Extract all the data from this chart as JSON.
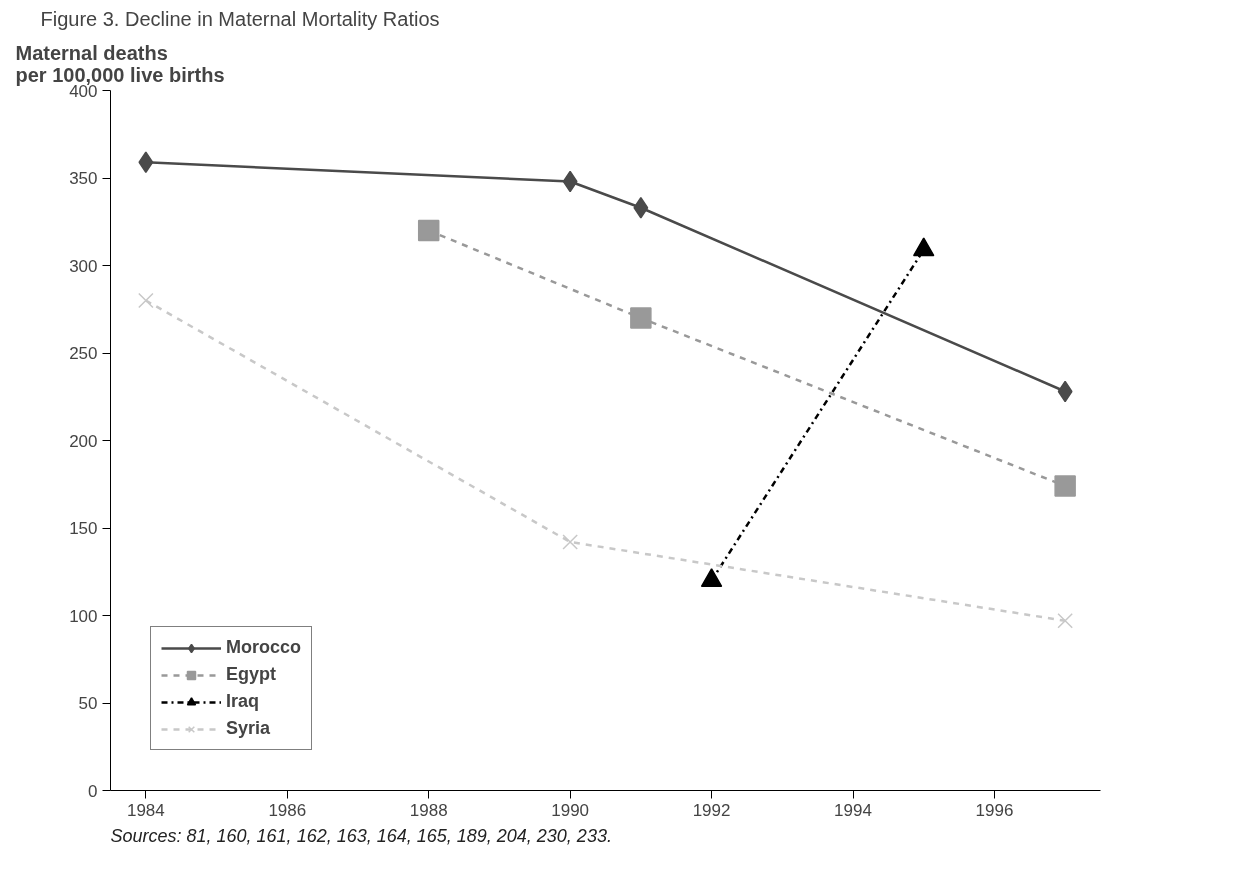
{
  "chart_data": {
    "type": "line",
    "title": "Figure 3. Decline in Maternal Mortality Ratios",
    "ylabel": "Maternal deaths\nper 100,000 live births",
    "xlim": [
      1983.5,
      1997.5
    ],
    "xticks": [
      1984,
      1986,
      1988,
      1990,
      1992,
      1994,
      1996
    ],
    "ylim": [
      0,
      400
    ],
    "yticks": [
      0,
      50,
      100,
      150,
      200,
      250,
      300,
      350,
      400
    ],
    "grid": false,
    "legend": "bottom left",
    "series": [
      {
        "name": "Morocco",
        "color": "#4a4a4a",
        "marker": "diamond",
        "line_style": "solid",
        "x": [
          1984,
          1990,
          1991,
          1997
        ],
        "values": [
          359,
          348,
          333,
          228
        ]
      },
      {
        "name": "Egypt",
        "color": "#999999",
        "marker": "square",
        "line_style": "dashed",
        "x": [
          1988,
          1991,
          1997
        ],
        "values": [
          320,
          270,
          174
        ]
      },
      {
        "name": "Iraq",
        "color": "#000000",
        "marker": "triangle",
        "line_style": "dashdot",
        "x": [
          1992,
          1995
        ],
        "values": [
          120,
          309
        ]
      },
      {
        "name": "Syria",
        "color": "#c8c8c8",
        "marker": "cross",
        "line_style": "dashed",
        "x": [
          1984,
          1990,
          1997
        ],
        "values": [
          280,
          142,
          97
        ]
      }
    ],
    "annotations": [
      "Sources: 81, 160, 161, 162, 163, 164, 165, 189, 204, 230, 233."
    ]
  }
}
